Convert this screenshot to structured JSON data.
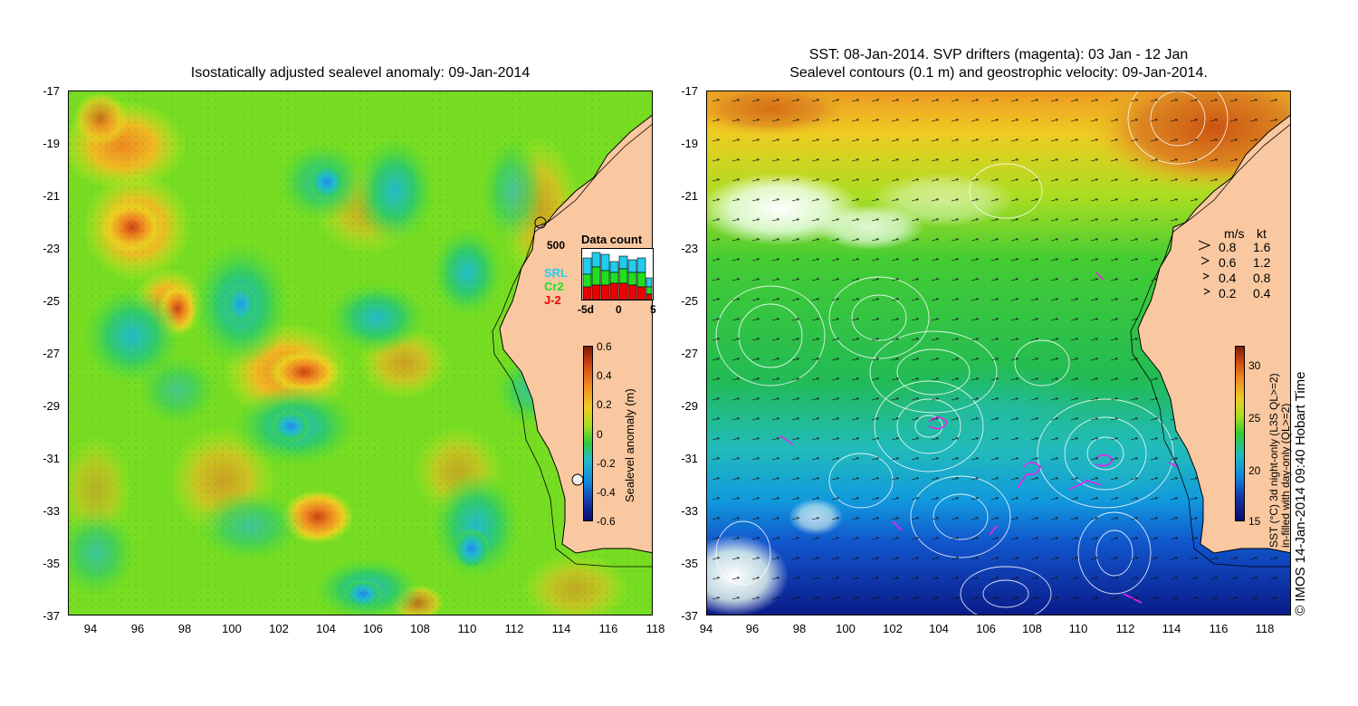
{
  "left_panel": {
    "title": "Isostatically adjusted sealevel anomaly: 09-Jan-2014",
    "y_ticks": [
      "-17",
      "-19",
      "-21",
      "-23",
      "-25",
      "-27",
      "-29",
      "-31",
      "-33",
      "-35",
      "-37"
    ],
    "x_ticks": [
      "94",
      "96",
      "98",
      "100",
      "102",
      "104",
      "106",
      "108",
      "110",
      "112",
      "114",
      "116",
      "118"
    ],
    "colorbar": {
      "label": "Sealevel anomaly (m)",
      "ticks": [
        "0.6",
        "0.4",
        "0.2",
        "0",
        "-0.2",
        "-0.4",
        "-0.6"
      ]
    },
    "data_count": {
      "title": "Data count",
      "max_label": "500",
      "x_ticks": [
        "-5d",
        "0",
        "5"
      ],
      "series": [
        {
          "name": "SRL",
          "color": "#22ccee"
        },
        {
          "name": "Cr2",
          "color": "#22dd22"
        },
        {
          "name": "J-2",
          "color": "#ee0000"
        }
      ]
    }
  },
  "right_panel": {
    "title_line1": "SST: 08-Jan-2014. SVP drifters (magenta): 03 Jan - 12 Jan",
    "title_line2": "Sealevel contours (0.1 m) and geostrophic velocity: 09-Jan-2014.",
    "y_ticks": [
      "-17",
      "-19",
      "-21",
      "-23",
      "-25",
      "-27",
      "-29",
      "-31",
      "-33",
      "-35",
      "-37"
    ],
    "x_ticks": [
      "94",
      "96",
      "98",
      "100",
      "102",
      "104",
      "106",
      "108",
      "110",
      "112",
      "114",
      "116",
      "118"
    ],
    "velocity_legend": {
      "units_ms": "m/s",
      "units_kt": "kt",
      "rows": [
        {
          "ms": "0.8",
          "kt": "1.6"
        },
        {
          "ms": "0.6",
          "kt": "1.2"
        },
        {
          "ms": "0.4",
          "kt": "0.8"
        },
        {
          "ms": "0.2",
          "kt": "0.4"
        }
      ]
    },
    "colorbar": {
      "ticks": [
        "30",
        "25",
        "20",
        "15"
      ],
      "label_line1": "SST (°C) 3d night-only (L3S QL>=2)",
      "label_line2": "in-filled with day-only (QL>=2)"
    }
  },
  "credit": "© IMOS 14-Jan-2014 09:40 Hobart Time",
  "colors": {
    "land": "#f9c8a0",
    "coast_line": "#000000",
    "contour": "#ffffff",
    "drifter": "#ee22ee"
  }
}
